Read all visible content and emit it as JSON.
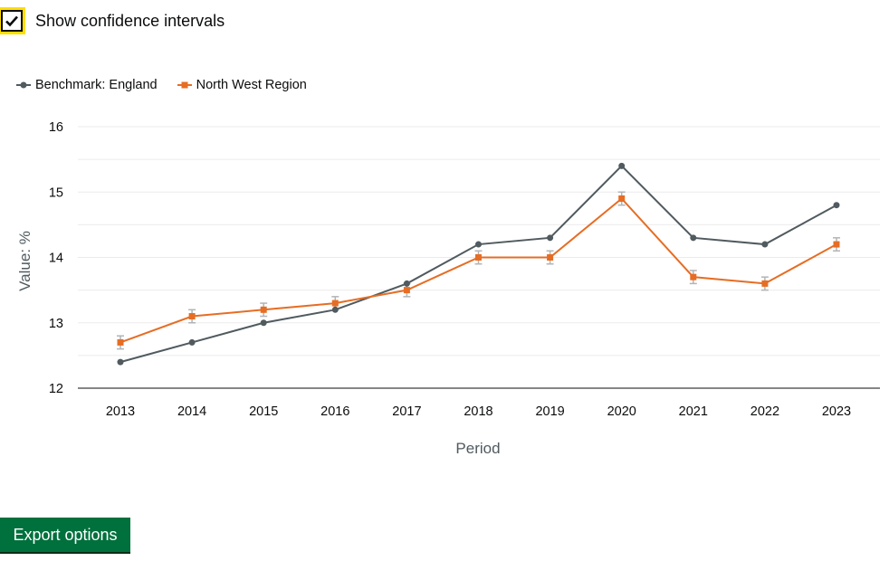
{
  "controls": {
    "ci_label": "Show confidence intervals",
    "ci_checked": true,
    "export_label": "Export options"
  },
  "legend": [
    {
      "name": "Benchmark: England",
      "color": "#505a5f",
      "marker": "circle"
    },
    {
      "name": "North West Region",
      "color": "#e66d24",
      "marker": "square"
    }
  ],
  "chart_data": {
    "type": "line",
    "x": [
      "2013",
      "2014",
      "2015",
      "2016",
      "2017",
      "2018",
      "2019",
      "2020",
      "2021",
      "2022",
      "2023"
    ],
    "xlabel": "Period",
    "ylabel": "Value: %",
    "ylim": [
      12,
      16
    ],
    "yticks": [
      12,
      13,
      14,
      15,
      16
    ],
    "grid": true,
    "legend_position": "top-left",
    "ci_color": "#b1b4b6",
    "series": [
      {
        "name": "Benchmark: England",
        "color": "#505a5f",
        "marker": "circle",
        "values": [
          12.4,
          12.7,
          13.0,
          13.2,
          13.6,
          14.2,
          14.3,
          15.4,
          14.3,
          14.2,
          14.8
        ]
      },
      {
        "name": "North West Region",
        "color": "#e66d24",
        "marker": "square",
        "values": [
          12.7,
          13.1,
          13.2,
          13.3,
          13.5,
          14.0,
          14.0,
          14.9,
          13.7,
          13.6,
          14.2
        ],
        "ci_lower": [
          12.6,
          13.0,
          13.1,
          13.2,
          13.4,
          13.9,
          13.9,
          14.8,
          13.6,
          13.5,
          14.1
        ],
        "ci_upper": [
          12.8,
          13.2,
          13.3,
          13.4,
          13.6,
          14.1,
          14.1,
          15.0,
          13.8,
          13.7,
          14.3
        ]
      }
    ]
  }
}
